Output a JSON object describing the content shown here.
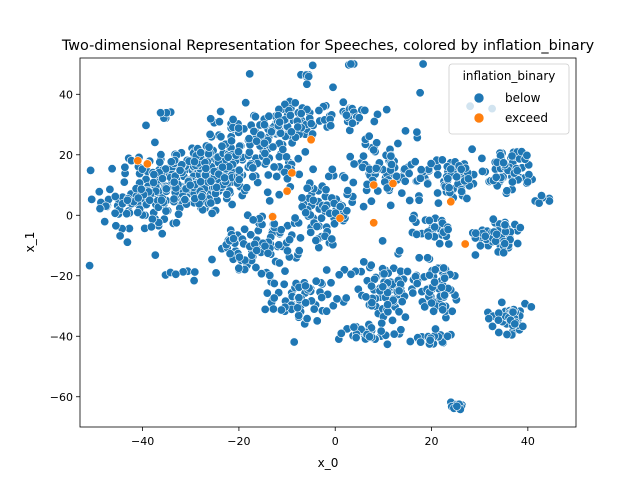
{
  "chart_data": {
    "type": "scatter",
    "title": "Two-dimensional Representation for Speeches, colored by inflation_binary",
    "xlabel": "x_0",
    "ylabel": "x_1",
    "xlim": [
      -53,
      50
    ],
    "ylim": [
      -70,
      52
    ],
    "xticks": [
      -40,
      -20,
      0,
      20,
      40
    ],
    "yticks": [
      -60,
      -40,
      -20,
      0,
      20,
      40
    ],
    "grid": false,
    "legend": {
      "title": "inflation_binary",
      "placement": "top-right"
    },
    "series": [
      {
        "name": "below",
        "color": "#1f77b4",
        "clusters": [
          {
            "cx": -29,
            "cy": 12,
            "rx": 9,
            "ry": 10,
            "n": 260
          },
          {
            "cx": -40,
            "cy": 5,
            "rx": 7,
            "ry": 10,
            "n": 90
          },
          {
            "cx": -18,
            "cy": 22,
            "rx": 8,
            "ry": 10,
            "n": 110
          },
          {
            "cx": -8,
            "cy": 30,
            "rx": 6,
            "ry": 6,
            "n": 45
          },
          {
            "cx": 3,
            "cy": 33,
            "rx": 5,
            "ry": 3,
            "n": 30
          },
          {
            "cx": -16,
            "cy": -10,
            "rx": 7,
            "ry": 8,
            "n": 80
          },
          {
            "cx": -7,
            "cy": -28,
            "rx": 5,
            "ry": 6,
            "n": 60
          },
          {
            "cx": -3,
            "cy": 0,
            "rx": 6,
            "ry": 10,
            "n": 50
          },
          {
            "cx": 10,
            "cy": 15,
            "rx": 6,
            "ry": 7,
            "n": 55
          },
          {
            "cx": 10,
            "cy": -25,
            "rx": 6,
            "ry": 9,
            "n": 80
          },
          {
            "cx": 7,
            "cy": -39,
            "rx": 5,
            "ry": 3,
            "n": 30
          },
          {
            "cx": 20,
            "cy": -40,
            "rx": 3,
            "ry": 3,
            "n": 20
          },
          {
            "cx": 24,
            "cy": 12,
            "rx": 6,
            "ry": 6,
            "n": 70
          },
          {
            "cx": 21,
            "cy": -5,
            "rx": 3,
            "ry": 4,
            "n": 30
          },
          {
            "cx": 21,
            "cy": -24,
            "rx": 5,
            "ry": 8,
            "n": 60
          },
          {
            "cx": 37,
            "cy": 15,
            "rx": 4,
            "ry": 6,
            "n": 60
          },
          {
            "cx": 34,
            "cy": -6,
            "rx": 4,
            "ry": 5,
            "n": 50
          },
          {
            "cx": 36,
            "cy": -34,
            "rx": 4,
            "ry": 4,
            "n": 45
          },
          {
            "cx": 43,
            "cy": 5,
            "rx": 1.5,
            "ry": 1.5,
            "n": 6
          },
          {
            "cx": -35,
            "cy": 34,
            "rx": 1.2,
            "ry": 1.5,
            "n": 6
          },
          {
            "cx": -6,
            "cy": 46,
            "rx": 1.0,
            "ry": 0.6,
            "n": 5
          },
          {
            "cx": -33,
            "cy": -19,
            "rx": 2,
            "ry": 1,
            "n": 6
          },
          {
            "cx": 25.5,
            "cy": -62.8,
            "rx": 1.2,
            "ry": 1,
            "n": 16
          },
          {
            "cx": 0,
            "cy": 15,
            "rx": 28,
            "ry": 25,
            "n": 120
          }
        ]
      },
      {
        "name": "exceed",
        "color": "#ff7f0e",
        "points": [
          [
            -41,
            18
          ],
          [
            -39,
            17
          ],
          [
            -13,
            -0.5
          ],
          [
            -10,
            8
          ],
          [
            -9,
            14
          ],
          [
            -5,
            25
          ],
          [
            1,
            -1
          ],
          [
            8,
            -2.5
          ],
          [
            8,
            10
          ],
          [
            12,
            10.5
          ],
          [
            24,
            4.5
          ],
          [
            27,
            -9.5
          ]
        ]
      }
    ]
  }
}
